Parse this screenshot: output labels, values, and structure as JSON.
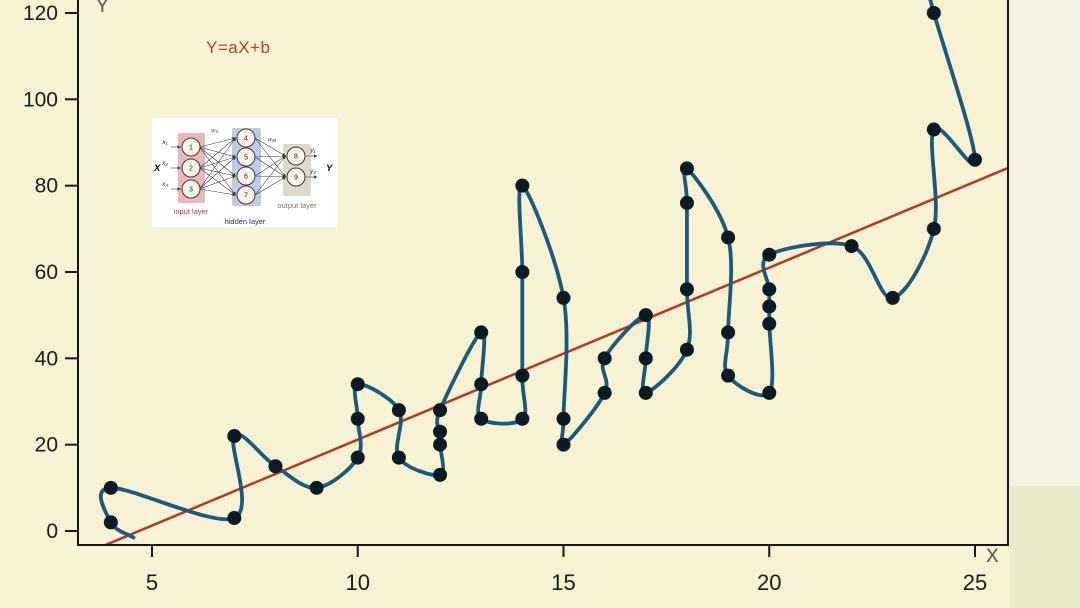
{
  "chart_data": {
    "type": "scatter",
    "title": "Y=aX+b",
    "xlabel": "X",
    "ylabel": "Y",
    "xlim": [
      3.35,
      26.3
    ],
    "ylim": [
      -3.3,
      123
    ],
    "grid": false,
    "legend": "none",
    "x_ticks": [
      "5",
      "10",
      "15",
      "20",
      "25"
    ],
    "x_tick_values": [
      5,
      10,
      15,
      20,
      25
    ],
    "y_ticks": [
      "0",
      "20",
      "40",
      "60",
      "80",
      "100",
      "120"
    ],
    "y_tick_values": [
      0,
      20,
      40,
      60,
      80,
      100,
      120
    ],
    "series": [
      {
        "name": "data-points",
        "type": "scatter",
        "color": "#0c1a24",
        "points": [
          [
            4,
            2
          ],
          [
            4,
            10
          ],
          [
            7,
            3
          ],
          [
            7,
            22
          ],
          [
            8,
            15
          ],
          [
            9,
            10
          ],
          [
            10,
            17
          ],
          [
            10,
            26
          ],
          [
            10,
            34
          ],
          [
            11,
            17
          ],
          [
            11,
            28
          ],
          [
            12,
            13
          ],
          [
            12,
            20
          ],
          [
            12,
            23
          ],
          [
            12,
            28
          ],
          [
            13,
            26
          ],
          [
            13,
            34
          ],
          [
            13,
            46
          ],
          [
            14,
            26
          ],
          [
            14,
            36
          ],
          [
            14,
            60
          ],
          [
            14,
            80
          ],
          [
            15,
            20
          ],
          [
            15,
            26
          ],
          [
            15,
            54
          ],
          [
            16,
            32
          ],
          [
            16,
            40
          ],
          [
            17,
            32
          ],
          [
            17,
            40
          ],
          [
            17,
            50
          ],
          [
            18,
            42
          ],
          [
            18,
            56
          ],
          [
            18,
            76
          ],
          [
            18,
            84
          ],
          [
            19,
            36
          ],
          [
            19,
            46
          ],
          [
            19,
            68
          ],
          [
            20,
            32
          ],
          [
            20,
            48
          ],
          [
            20,
            52
          ],
          [
            20,
            56
          ],
          [
            20,
            64
          ],
          [
            22,
            66
          ],
          [
            23,
            54
          ],
          [
            24,
            70
          ],
          [
            24,
            93
          ],
          [
            24,
            120
          ],
          [
            25,
            86
          ]
        ]
      },
      {
        "name": "overfit-spline",
        "type": "line",
        "color": "#1d5a7a",
        "path_order": [
          [
            4.55,
            -1.5
          ],
          [
            4,
            2
          ],
          [
            4,
            10
          ],
          [
            7,
            3
          ],
          [
            7,
            22
          ],
          [
            8,
            15
          ],
          [
            9,
            10
          ],
          [
            10,
            17
          ],
          [
            10,
            26
          ],
          [
            10,
            34
          ],
          [
            11,
            28
          ],
          [
            11,
            17
          ],
          [
            12,
            13
          ],
          [
            12,
            20
          ],
          [
            12,
            23
          ],
          [
            12,
            28
          ],
          [
            13,
            46
          ],
          [
            13,
            34
          ],
          [
            13,
            26
          ],
          [
            14,
            26
          ],
          [
            14,
            36
          ],
          [
            14,
            60
          ],
          [
            14,
            80
          ],
          [
            15,
            54
          ],
          [
            15,
            26
          ],
          [
            15,
            20
          ],
          [
            16,
            32
          ],
          [
            16,
            40
          ],
          [
            17,
            50
          ],
          [
            17,
            40
          ],
          [
            17,
            32
          ],
          [
            18,
            42
          ],
          [
            18,
            56
          ],
          [
            18,
            76
          ],
          [
            18,
            84
          ],
          [
            19,
            68
          ],
          [
            19,
            46
          ],
          [
            19,
            36
          ],
          [
            20,
            32
          ],
          [
            20,
            48
          ],
          [
            20,
            52
          ],
          [
            20,
            56
          ],
          [
            20,
            64
          ],
          [
            22,
            66
          ],
          [
            23,
            54
          ],
          [
            24,
            70
          ],
          [
            24,
            93
          ],
          [
            25,
            86
          ],
          [
            24,
            120
          ],
          [
            23.75,
            129
          ]
        ]
      },
      {
        "name": "linear-fit",
        "type": "line",
        "color": "#ae3a26",
        "equation": "Y = aX + b",
        "slope": 4,
        "intercept": -19,
        "points": [
          [
            3.88,
            -3.2
          ],
          [
            25.8,
            84.1
          ]
        ]
      }
    ]
  },
  "inset": {
    "x_label": "X",
    "y_label": "Y",
    "input_labels": [
      "x₁",
      "x₂",
      "x₃"
    ],
    "output_labels": [
      "y₁",
      "y₂"
    ],
    "input_nodes": [
      "1",
      "2",
      "3"
    ],
    "hidden_nodes": [
      "4",
      "5",
      "6",
      "7"
    ],
    "output_nodes": [
      "8",
      "9"
    ],
    "layer_labels": {
      "input": "input layer",
      "hidden": "hidden layer",
      "output": "output layer"
    },
    "weight_labels": [
      "w₁₁",
      "w₄₈"
    ],
    "colors": {
      "input_fill": "#e7b0b4",
      "hidden_fill": "#b9c4e2",
      "output_fill": "#d8d5c8",
      "node_fill": "#fbf2ea",
      "input_text": "#cc3340",
      "hidden_text": "#26336e",
      "output_text": "#7b7260"
    }
  }
}
